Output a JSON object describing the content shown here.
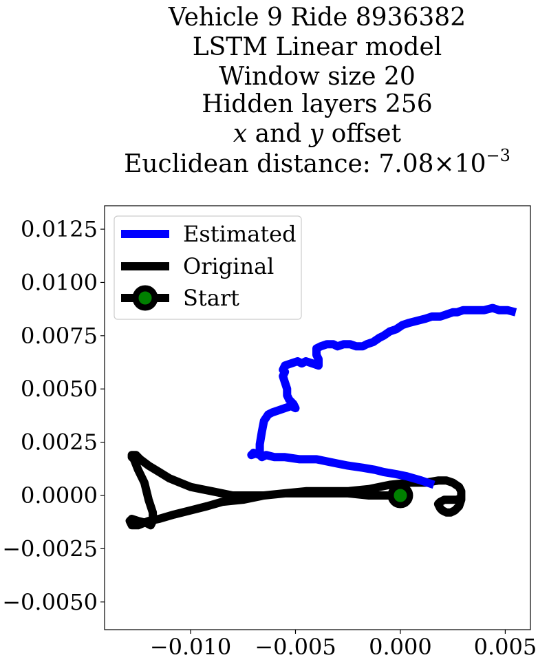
{
  "chart_data": {
    "type": "line",
    "title": {
      "lines": [
        "Vehicle 9 Ride 8936382",
        "LSTM Linear model",
        "Window size 20",
        "Hidden layers 256"
      ],
      "offset_line": {
        "var1": "x",
        "and": " and ",
        "var2": "y",
        "rest": " offset"
      },
      "distance_line": {
        "prefix": "Euclidean distance: ",
        "mantissa": "7.08",
        "times": "×",
        "base": "10",
        "exponent": "−3"
      }
    },
    "xlabel": "",
    "ylabel": "",
    "xlim": [
      -0.0141,
      0.0062
    ],
    "ylim": [
      -0.0063,
      0.0136
    ],
    "xticks": [
      -0.01,
      -0.005,
      0.0,
      0.005
    ],
    "xtick_labels": [
      "−0.010",
      "−0.005",
      "0.000",
      "0.005"
    ],
    "yticks": [
      -0.005,
      -0.0025,
      0.0,
      0.0025,
      0.005,
      0.0075,
      0.01,
      0.0125
    ],
    "ytick_labels": [
      "−0.0050",
      "−0.0025",
      "0.0000",
      "0.0025",
      "0.0050",
      "0.0075",
      "0.0100",
      "0.0125"
    ],
    "grid": false,
    "legend_position": "upper-left",
    "series": [
      {
        "name": "Estimated",
        "color": "#0000ff",
        "points": [
          [
            0.0016,
            0.0005
          ],
          [
            0.001,
            0.0007
          ],
          [
            0.0003,
            0.0009
          ],
          [
            -0.0002,
            0.001
          ],
          [
            -0.0008,
            0.0011
          ],
          [
            -0.0012,
            0.0012
          ],
          [
            -0.0018,
            0.0013
          ],
          [
            -0.0025,
            0.0014
          ],
          [
            -0.003,
            0.0015
          ],
          [
            -0.0035,
            0.0016
          ],
          [
            -0.004,
            0.0017
          ],
          [
            -0.0048,
            0.0017
          ],
          [
            -0.0055,
            0.0018
          ],
          [
            -0.006,
            0.0018
          ],
          [
            -0.0064,
            0.0019
          ],
          [
            -0.0066,
            0.0018
          ],
          [
            -0.0068,
            0.002
          ],
          [
            -0.0071,
            0.0019
          ],
          [
            -0.007,
            0.002
          ],
          [
            -0.0067,
            0.0019
          ],
          [
            -0.0067,
            0.0024
          ],
          [
            -0.0066,
            0.003
          ],
          [
            -0.0065,
            0.0035
          ],
          [
            -0.0063,
            0.0038
          ],
          [
            -0.0061,
            0.0039
          ],
          [
            -0.0058,
            0.004
          ],
          [
            -0.0055,
            0.0041
          ],
          [
            -0.0052,
            0.0042
          ],
          [
            -0.005,
            0.0041
          ],
          [
            -0.0051,
            0.0043
          ],
          [
            -0.0053,
            0.0045
          ],
          [
            -0.0054,
            0.0047
          ],
          [
            -0.0054,
            0.005
          ],
          [
            -0.0055,
            0.0053
          ],
          [
            -0.0056,
            0.0056
          ],
          [
            -0.0055,
            0.0058
          ],
          [
            -0.0056,
            0.0059
          ],
          [
            -0.0055,
            0.0061
          ],
          [
            -0.0052,
            0.0062
          ],
          [
            -0.0049,
            0.0063
          ],
          [
            -0.0047,
            0.0062
          ],
          [
            -0.0045,
            0.0063
          ],
          [
            -0.0042,
            0.0062
          ],
          [
            -0.0039,
            0.0061
          ],
          [
            -0.0039,
            0.0064
          ],
          [
            -0.004,
            0.0066
          ],
          [
            -0.004,
            0.0069
          ],
          [
            -0.0038,
            0.007
          ],
          [
            -0.0035,
            0.0071
          ],
          [
            -0.0032,
            0.0071
          ],
          [
            -0.003,
            0.007
          ],
          [
            -0.0027,
            0.0071
          ],
          [
            -0.0024,
            0.0071
          ],
          [
            -0.0021,
            0.007
          ],
          [
            -0.0018,
            0.007
          ],
          [
            -0.0016,
            0.0071
          ],
          [
            -0.0013,
            0.0072
          ],
          [
            -0.001,
            0.0074
          ],
          [
            -0.0008,
            0.0075
          ],
          [
            -0.0005,
            0.0077
          ],
          [
            -0.0002,
            0.0078
          ],
          [
            0.0001,
            0.008
          ],
          [
            0.0004,
            0.0081
          ],
          [
            0.0008,
            0.0082
          ],
          [
            0.0012,
            0.0083
          ],
          [
            0.0015,
            0.0084
          ],
          [
            0.0019,
            0.0084
          ],
          [
            0.0022,
            0.0085
          ],
          [
            0.0025,
            0.0086
          ],
          [
            0.0027,
            0.0086
          ],
          [
            0.003,
            0.0087
          ],
          [
            0.0033,
            0.0087
          ],
          [
            0.0036,
            0.0087
          ],
          [
            0.004,
            0.0087
          ],
          [
            0.0044,
            0.0088
          ],
          [
            0.0047,
            0.0087
          ],
          [
            0.0051,
            0.0087
          ],
          [
            0.0055,
            0.0086
          ]
        ]
      },
      {
        "name": "Original",
        "color": "#000000",
        "points": [
          [
            0.0,
            0.0
          ],
          [
            -0.0015,
            0.0
          ],
          [
            -0.0025,
            0.0001
          ],
          [
            -0.0035,
            0.0001
          ],
          [
            -0.0045,
            0.0001
          ],
          [
            -0.0055,
            0.0001
          ],
          [
            -0.0065,
            0.0
          ],
          [
            -0.0075,
            0.0
          ],
          [
            -0.008,
            0.0
          ],
          [
            -0.0085,
            0.0001
          ],
          [
            -0.009,
            0.0002
          ],
          [
            -0.0095,
            0.0003
          ],
          [
            -0.01,
            0.0004
          ],
          [
            -0.0105,
            0.0006
          ],
          [
            -0.011,
            0.0008
          ],
          [
            -0.0115,
            0.0011
          ],
          [
            -0.012,
            0.0014
          ],
          [
            -0.0124,
            0.0017
          ],
          [
            -0.0126,
            0.0019
          ],
          [
            -0.0128,
            0.0019
          ],
          [
            -0.0128,
            0.0018
          ],
          [
            -0.0127,
            0.0017
          ],
          [
            -0.0125,
            0.0012
          ],
          [
            -0.0122,
            0.0006
          ],
          [
            -0.012,
            -0.0002
          ],
          [
            -0.0118,
            -0.0008
          ],
          [
            -0.0118,
            -0.0012
          ],
          [
            -0.0119,
            -0.0014
          ],
          [
            -0.0121,
            -0.0013
          ],
          [
            -0.0125,
            -0.0012
          ],
          [
            -0.0128,
            -0.0011
          ],
          [
            -0.0129,
            -0.0012
          ],
          [
            -0.0128,
            -0.0014
          ],
          [
            -0.0125,
            -0.0014
          ],
          [
            -0.012,
            -0.0012
          ],
          [
            -0.0115,
            -0.0011
          ],
          [
            -0.0108,
            -0.0009
          ],
          [
            -0.01,
            -0.0007
          ],
          [
            -0.0092,
            -0.0005
          ],
          [
            -0.0085,
            -0.0003
          ],
          [
            -0.0075,
            -0.0002
          ],
          [
            -0.0065,
            0.0
          ],
          [
            -0.0055,
            0.0001
          ],
          [
            -0.0045,
            0.0002
          ],
          [
            -0.0035,
            0.0002
          ],
          [
            -0.0025,
            0.0002
          ],
          [
            -0.0015,
            0.0003
          ],
          [
            -0.0005,
            0.0005
          ],
          [
            0.0005,
            0.0006
          ],
          [
            0.0012,
            0.0006
          ],
          [
            0.0018,
            0.0007
          ],
          [
            0.0022,
            0.0007
          ],
          [
            0.0025,
            0.0006
          ],
          [
            0.0028,
            0.0004
          ],
          [
            0.0029,
            0.0002
          ],
          [
            0.0029,
            -0.0002
          ],
          [
            0.0028,
            -0.0005
          ],
          [
            0.0026,
            -0.0007
          ],
          [
            0.0024,
            -0.0008
          ],
          [
            0.0022,
            -0.0008
          ],
          [
            0.002,
            -0.0007
          ],
          [
            0.0019,
            -0.0006
          ],
          [
            0.0018,
            -0.0004
          ],
          [
            0.0019,
            -0.0003
          ],
          [
            0.0021,
            -0.0002
          ],
          [
            0.0024,
            -0.0002
          ],
          [
            0.0027,
            -0.0002
          ],
          [
            0.0029,
            -0.0001
          ]
        ]
      },
      {
        "name": "Start",
        "color": "#000000",
        "marker_face": "#008000",
        "points": [
          [
            0.0,
            0.0
          ]
        ]
      }
    ]
  }
}
